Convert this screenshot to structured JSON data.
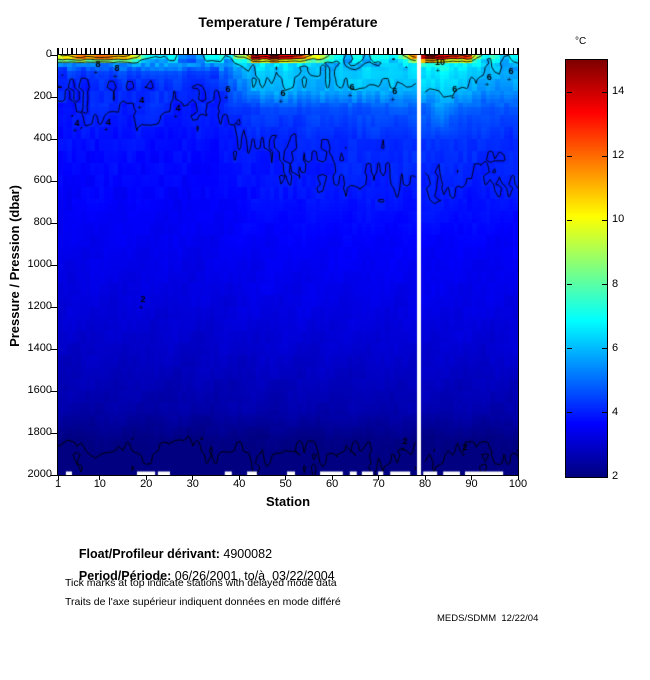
{
  "title": "Temperature / Température",
  "axes": {
    "x_label": "Station",
    "y_label": "Pressure / Pression (dbar)",
    "x_ticks": [
      1,
      10,
      20,
      30,
      40,
      50,
      60,
      70,
      80,
      90,
      100
    ],
    "y_ticks": [
      0,
      200,
      400,
      600,
      800,
      1000,
      1200,
      1400,
      1600,
      1800,
      2000
    ],
    "x_range": [
      1,
      100
    ],
    "y_range": [
      0,
      2000
    ]
  },
  "colorbar": {
    "unit": "°C",
    "ticks": [
      2,
      4,
      6,
      8,
      10,
      12,
      14
    ],
    "vmin": 2,
    "vmax": 15,
    "colormap": "jet"
  },
  "chart_data": {
    "type": "heatmap",
    "title": "Temperature / Température",
    "xlabel": "Station",
    "ylabel": "Pressure / Pression (dbar)",
    "x_stations": [
      1,
      5,
      10,
      15,
      20,
      25,
      30,
      35,
      40,
      43,
      47,
      51,
      55,
      60,
      65,
      70,
      74,
      77,
      79,
      81,
      84,
      87,
      90,
      93,
      96,
      100
    ],
    "y_pressures_dbar": [
      0,
      15,
      40,
      80,
      150,
      250,
      400,
      600,
      900,
      1150,
      1400,
      1700,
      1850,
      2000
    ],
    "temperature_c": [
      [
        8.5,
        11,
        12,
        10.5,
        8,
        6.3,
        6,
        6.2,
        8.5,
        13,
        13.8,
        13.2,
        10.5,
        6.8,
        6.5,
        6.6,
        7.5,
        10.5,
        null,
        14.2,
        14.8,
        13.5,
        11.5,
        8,
        6.8,
        6.4
      ],
      [
        7.5,
        9,
        9.5,
        8.5,
        7,
        5.8,
        5.6,
        5.8,
        7,
        10.5,
        11,
        10.5,
        8.5,
        6.4,
        6.2,
        6.3,
        6.8,
        8.5,
        null,
        11.5,
        12,
        11,
        9.5,
        7.2,
        6.4,
        6.1
      ],
      [
        4.8,
        5,
        5,
        5.3,
        5.5,
        5.4,
        5.2,
        5.4,
        6,
        6.3,
        6.4,
        6.3,
        6.1,
        5.9,
        5.9,
        6,
        6.1,
        6.5,
        null,
        7,
        7.2,
        6.7,
        6.5,
        6.2,
        6,
        5.9
      ],
      [
        4.2,
        4.3,
        4.3,
        4.4,
        4.5,
        4.4,
        4.3,
        4.5,
        5.5,
        6,
        6.2,
        6.1,
        6,
        6.1,
        6.2,
        6.3,
        6.3,
        6.4,
        null,
        6.6,
        6.7,
        6.4,
        6.2,
        6,
        5.9,
        6
      ],
      [
        4,
        4.05,
        4.1,
        4.05,
        4.15,
        4.1,
        4.05,
        4.1,
        5,
        5.9,
        6,
        6,
        5.9,
        6,
        6,
        6.05,
        6,
        6.1,
        null,
        6.2,
        6.4,
        6.1,
        5.9,
        5.7,
        5.6,
        5.6
      ],
      [
        3.95,
        4,
        4.05,
        4,
        4.1,
        4,
        3.95,
        4,
        4.3,
        4.4,
        4.5,
        4.5,
        4.6,
        4.6,
        4.7,
        4.7,
        4.7,
        4.8,
        null,
        5,
        5.5,
        4.9,
        4.8,
        4.7,
        4.6,
        4.6
      ],
      [
        3.75,
        3.78,
        3.8,
        3.78,
        3.8,
        3.78,
        3.76,
        3.8,
        3.95,
        4,
        4.05,
        4.05,
        4.1,
        4.1,
        4.15,
        4.15,
        4.15,
        4.2,
        null,
        4.25,
        4.3,
        4.25,
        4.2,
        4.18,
        4.15,
        4.15
      ],
      [
        3.6,
        3.62,
        3.65,
        3.63,
        3.65,
        3.62,
        3.6,
        3.65,
        3.8,
        3.85,
        3.9,
        3.9,
        3.95,
        3.95,
        4,
        4,
        4,
        4.02,
        null,
        4.05,
        4.05,
        4.02,
        4,
        3.98,
        3.98,
        4
      ],
      [
        3.4,
        3.42,
        3.44,
        3.42,
        3.44,
        3.42,
        3.4,
        3.44,
        3.5,
        3.52,
        3.54,
        3.54,
        3.55,
        3.55,
        3.56,
        3.56,
        3.56,
        3.57,
        null,
        3.58,
        3.58,
        3.57,
        3.56,
        3.55,
        3.55,
        3.56
      ],
      [
        3.2,
        3.21,
        3.22,
        3.21,
        3.22,
        3.21,
        3.2,
        3.22,
        3.28,
        3.3,
        3.32,
        3.32,
        3.33,
        3.33,
        3.34,
        3.34,
        3.34,
        3.35,
        null,
        3.36,
        3.36,
        3.35,
        3.34,
        3.33,
        3.33,
        3.34
      ],
      [
        2.92,
        2.93,
        2.94,
        2.93,
        2.94,
        2.93,
        2.92,
        2.94,
        2.98,
        3,
        3.02,
        3.02,
        3.03,
        3.03,
        3.04,
        3.04,
        3.04,
        3.05,
        null,
        3.06,
        3.06,
        3.05,
        3.04,
        3.03,
        3.03,
        3.04
      ],
      [
        2.5,
        2.51,
        2.52,
        2.51,
        2.52,
        2.51,
        2.5,
        2.52,
        2.55,
        2.56,
        2.57,
        2.57,
        2.58,
        2.58,
        2.59,
        2.59,
        2.59,
        2.6,
        null,
        2.61,
        2.61,
        2.6,
        2.59,
        2.58,
        2.58,
        2.59
      ],
      [
        2,
        2.01,
        2.05,
        2.03,
        2.02,
        2,
        1.99,
        2.02,
        2.04,
        2.05,
        2.03,
        2.02,
        2.04,
        2.03,
        2.05,
        2.06,
        2.05,
        2.06,
        null,
        2.05,
        2.04,
        2.03,
        2.05,
        2.04,
        2.03,
        2.05
      ],
      [
        1.85,
        1.86,
        1.87,
        1.86,
        1.87,
        1.86,
        1.85,
        1.87,
        1.88,
        1.88,
        1.89,
        1.89,
        1.9,
        1.9,
        1.9,
        1.9,
        1.9,
        1.91,
        null,
        1.91,
        1.91,
        1.9,
        1.9,
        1.9,
        1.9,
        1.9
      ]
    ],
    "missing_station": 79,
    "delayed_mode_gap_stations": [
      76,
      77,
      78
    ],
    "contour_levels": [
      2,
      4,
      6,
      8,
      10,
      12,
      14
    ],
    "contour_labels": [
      {
        "t": "8",
        "s": 9.6,
        "p": 45
      },
      {
        "t": "8",
        "s": 13.7,
        "p": 65
      },
      {
        "t": "4",
        "s": 19,
        "p": 215
      },
      {
        "t": "4",
        "s": 26.8,
        "p": 255
      },
      {
        "t": "4",
        "s": 5.1,
        "p": 325
      },
      {
        "t": "4",
        "s": 11.8,
        "p": 320
      },
      {
        "t": "6",
        "s": 37.6,
        "p": 165
      },
      {
        "t": "6",
        "s": 49.4,
        "p": 185
      },
      {
        "t": "6",
        "s": 64.3,
        "p": 155
      },
      {
        "t": "6",
        "s": 73.5,
        "p": 175
      },
      {
        "t": "10",
        "s": 83.2,
        "p": 35
      },
      {
        "t": "6",
        "s": 86.4,
        "p": 165
      },
      {
        "t": "6",
        "s": 93.8,
        "p": 105
      },
      {
        "t": "6",
        "s": 98.5,
        "p": 80
      },
      {
        "t": "2",
        "s": 19.3,
        "p": 1165
      },
      {
        "t": "2",
        "s": 75.7,
        "p": 1840
      },
      {
        "t": "2",
        "s": 88.6,
        "p": 1868
      }
    ],
    "bottom_missing_segments": [
      [
        2.7,
        4.0
      ],
      [
        18.0,
        21.9
      ],
      [
        22.5,
        25.1
      ],
      [
        36.9,
        38.4
      ],
      [
        41.7,
        43.8
      ],
      [
        50.3,
        52.0
      ],
      [
        57.4,
        62.3
      ],
      [
        63.8,
        65.3
      ],
      [
        66.4,
        68.8
      ],
      [
        69.9,
        71.0
      ],
      [
        72.5,
        76.8
      ],
      [
        79.6,
        82.6
      ],
      [
        83.9,
        87.5
      ],
      [
        88.6,
        96.8
      ]
    ]
  },
  "footer": {
    "float_label": "Float/Profileur dérivant:",
    "float_value": " 4900082",
    "period_label": "Period/Période:",
    "period_value": " 06/26/2001  to/à  03/22/2004",
    "note_en": "Tick marks at top indicate stations with delayed mode data",
    "note_fr": "Traits de l'axe supérieur indiquent données en mode différé",
    "credit": "MEDS/SDMM  12/22/04"
  }
}
